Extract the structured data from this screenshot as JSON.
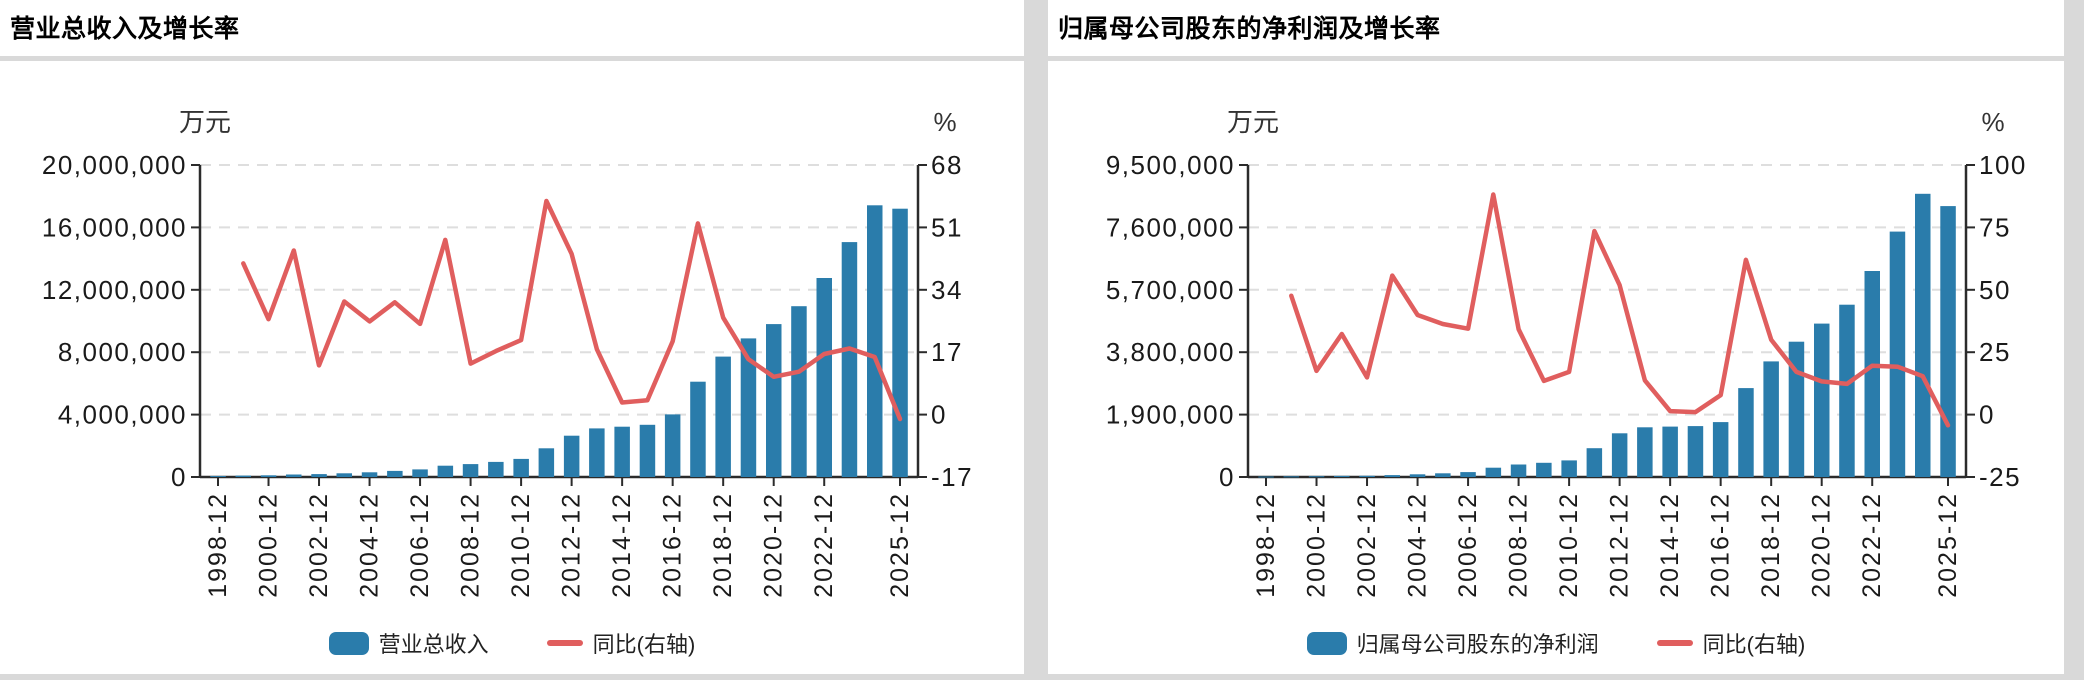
{
  "colors": {
    "bar": "#2a7cab",
    "line": "#e05e5e",
    "grid": "#dedede",
    "axis": "#2b2b2b",
    "divider": "#d9d9d9",
    "text": "#1a1a1a"
  },
  "panels": [
    {
      "title": "营业总收入及增长率",
      "legend": {
        "bar_label": "营业总收入",
        "line_label": "同比(右轴)"
      },
      "chart_data": {
        "type": "bar+line",
        "unit_left": "万元",
        "unit_right": "%",
        "x": [
          "1998-12",
          "1999-12",
          "2000-12",
          "2001-12",
          "2002-12",
          "2003-12",
          "2004-12",
          "2005-12",
          "2006-12",
          "2007-12",
          "2008-12",
          "2009-12",
          "2010-12",
          "2011-12",
          "2012-12",
          "2013-12",
          "2014-12",
          "2015-12",
          "2016-12",
          "2017-12",
          "2018-12",
          "2019-12",
          "2020-12",
          "2021-12",
          "2022-12",
          "2023-12",
          "2024-12",
          "2025-12"
        ],
        "x_tick_labels": [
          "1998-12",
          "2000-12",
          "2002-12",
          "2004-12",
          "2006-12",
          "2008-12",
          "2010-12",
          "2012-12",
          "2014-12",
          "2016-12",
          "2018-12",
          "2020-12",
          "2022-12",
          "2025-12"
        ],
        "bar_series": {
          "name": "营业总收入",
          "values": [
            62800,
            88700,
            111800,
            161800,
            183500,
            240100,
            301000,
            393100,
            490300,
            723700,
            824200,
            967000,
            1163300,
            1840200,
            2645500,
            3117400,
            3221700,
            3346900,
            4015500,
            6106300,
            7719900,
            8885400,
            9799300,
            10946400,
            12755400,
            15056000,
            17414400,
            17200000
          ]
        },
        "line_series": {
          "name": "同比(右轴)",
          "values": [
            null,
            41.2,
            26.0,
            44.7,
            13.4,
            30.8,
            25.4,
            30.6,
            24.7,
            47.6,
            13.9,
            17.3,
            20.3,
            58.2,
            43.8,
            17.8,
            3.3,
            3.9,
            20.0,
            52.1,
            26.4,
            15.1,
            10.3,
            11.7,
            16.5,
            18.0,
            15.7,
            -1.2
          ]
        },
        "left_axis": {
          "min": 0,
          "max": 20000000,
          "tick_values": [
            20000000,
            16000000,
            12000000,
            8000000,
            4000000,
            0
          ],
          "tick_labels": [
            "20,000,000",
            "16,000,000",
            "12,000,000",
            "8,000,000",
            "4,000,000",
            "0"
          ]
        },
        "right_axis": {
          "min": -17,
          "max": 68,
          "tick_values": [
            68,
            51,
            34,
            17,
            0,
            -17
          ],
          "tick_labels": [
            "68",
            "51",
            "34",
            "17",
            "0",
            "-17"
          ]
        },
        "grid": "dashed",
        "legend_position": "bottom"
      }
    },
    {
      "title": "归属母公司股东的净利润及增长率",
      "legend": {
        "bar_label": "归属母公司股东的净利润",
        "line_label": "同比(右轴)"
      },
      "chart_data": {
        "type": "bar+line",
        "unit_left": "万元",
        "unit_right": "%",
        "x": [
          "1998-12",
          "1999-12",
          "2000-12",
          "2001-12",
          "2002-12",
          "2003-12",
          "2004-12",
          "2005-12",
          "2006-12",
          "2007-12",
          "2008-12",
          "2009-12",
          "2010-12",
          "2011-12",
          "2012-12",
          "2013-12",
          "2014-12",
          "2015-12",
          "2016-12",
          "2017-12",
          "2018-12",
          "2019-12",
          "2020-12",
          "2021-12",
          "2022-12",
          "2023-12",
          "2024-12",
          "2025-12"
        ],
        "x_tick_labels": [
          "1998-12",
          "2000-12",
          "2002-12",
          "2004-12",
          "2006-12",
          "2008-12",
          "2010-12",
          "2012-12",
          "2014-12",
          "2016-12",
          "2018-12",
          "2020-12",
          "2022-12",
          "2025-12"
        ],
        "bar_series": {
          "name": "归属母公司股东的净利润",
          "values": [
            14300,
            21100,
            24800,
            32800,
            37700,
            58700,
            82100,
            111900,
            150400,
            283000,
            379900,
            431200,
            505100,
            876300,
            1330800,
            1513700,
            1535000,
            1550300,
            1671800,
            2707900,
            3520400,
            4120600,
            4669700,
            5246000,
            6271600,
            7473400,
            8622800,
            8250000
          ]
        },
        "line_series": {
          "name": "同比(右轴)",
          "values": [
            null,
            47.6,
            17.5,
            32.3,
            14.9,
            55.7,
            39.9,
            36.3,
            34.4,
            88.2,
            34.2,
            13.5,
            17.1,
            73.5,
            51.9,
            13.7,
            1.4,
            1.0,
            7.8,
            62.0,
            30.0,
            17.1,
            13.3,
            12.3,
            19.6,
            19.2,
            15.4,
            -4.3
          ]
        },
        "left_axis": {
          "min": 0,
          "max": 9500000,
          "tick_values": [
            9500000,
            7600000,
            5700000,
            3800000,
            1900000,
            0
          ],
          "tick_labels": [
            "9,500,000",
            "7,600,000",
            "5,700,000",
            "3,800,000",
            "1,900,000",
            "0"
          ]
        },
        "right_axis": {
          "min": -25,
          "max": 100,
          "tick_values": [
            100,
            75,
            50,
            25,
            0,
            -25
          ],
          "tick_labels": [
            "100",
            "75",
            "50",
            "25",
            "0",
            "-25"
          ]
        },
        "grid": "dashed",
        "legend_position": "bottom"
      }
    }
  ]
}
